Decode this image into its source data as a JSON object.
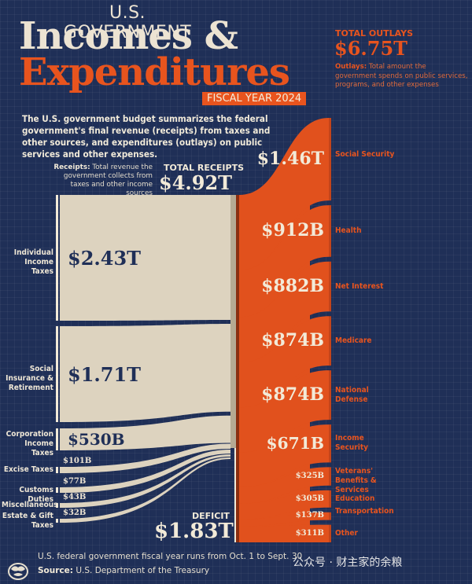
{
  "header": {
    "eyebrow": "U.S. GOVERNMENT",
    "title_line1": "Incomes &",
    "title_line2": "Expenditures",
    "fiscal_year_badge": "FISCAL YEAR 2024",
    "intro": "The U.S. government budget summarizes the federal government's final revenue (receipts) from taxes and other sources, and expenditures (outlays) on public services and other expenses."
  },
  "receipts": {
    "desc_bold": "Receipts:",
    "desc": "Total revenue the government collects from taxes and other income sources",
    "total_label": "TOTAL RECEIPTS",
    "total_value": "$4.92T"
  },
  "outlays": {
    "total_label": "TOTAL OUTLAYS",
    "total_value": "$6.75T",
    "desc_bold": "Outlays:",
    "desc": "Total amount the government spends on public services, programs, and other expenses"
  },
  "deficit": {
    "label": "DEFICIT",
    "value": "$1.83T"
  },
  "colors": {
    "background": "#1f2f57",
    "receipts": "#ddd3bf",
    "outlays": "#e1511d",
    "text_light": "#f2ead8",
    "accent": "#e8541e"
  },
  "footer": {
    "note": "U.S. federal government fiscal year runs from Oct. 1 to Sept. 30",
    "source_bold": "Source:",
    "source": "U.S. Department of the Treasury",
    "watermark": "公众号 · 财主家的余粮"
  },
  "chart_data": {
    "type": "sankey",
    "title": "U.S. Government Incomes & Expenditures, Fiscal Year 2024",
    "units": "USD",
    "receipts_total": 4.92,
    "outlays_total": 6.75,
    "deficit": 1.83,
    "receipts": [
      {
        "name": "Individual Income Taxes",
        "value": 2430,
        "label": "$2.43T"
      },
      {
        "name": "Social Insurance & Retirement",
        "value": 1710,
        "label": "$1.71T"
      },
      {
        "name": "Corporation Income Taxes",
        "value": 530,
        "label": "$530B"
      },
      {
        "name": "Excise Taxes",
        "value": 101,
        "label": "$101B"
      },
      {
        "name": "Customs Duties",
        "value": 77,
        "label": "$77B"
      },
      {
        "name": "Miscellaneous",
        "value": 43,
        "label": "$43B"
      },
      {
        "name": "Estate & Gift Taxes",
        "value": 32,
        "label": "$32B"
      }
    ],
    "outlays": [
      {
        "name": "Social Security",
        "value": 1460,
        "label": "$1.46T"
      },
      {
        "name": "Health",
        "value": 912,
        "label": "$912B"
      },
      {
        "name": "Net Interest",
        "value": 882,
        "label": "$882B"
      },
      {
        "name": "Medicare",
        "value": 874,
        "label": "$874B"
      },
      {
        "name": "National Defense",
        "value": 874,
        "label": "$874B"
      },
      {
        "name": "Income Security",
        "value": 671,
        "label": "$671B"
      },
      {
        "name": "Veterans' Benefits & Services",
        "value": 325,
        "label": "$325B"
      },
      {
        "name": "Education",
        "value": 305,
        "label": "$305B"
      },
      {
        "name": "Transportation",
        "value": 137,
        "label": "$137B"
      },
      {
        "name": "Other",
        "value": 311,
        "label": "$311B"
      }
    ]
  }
}
